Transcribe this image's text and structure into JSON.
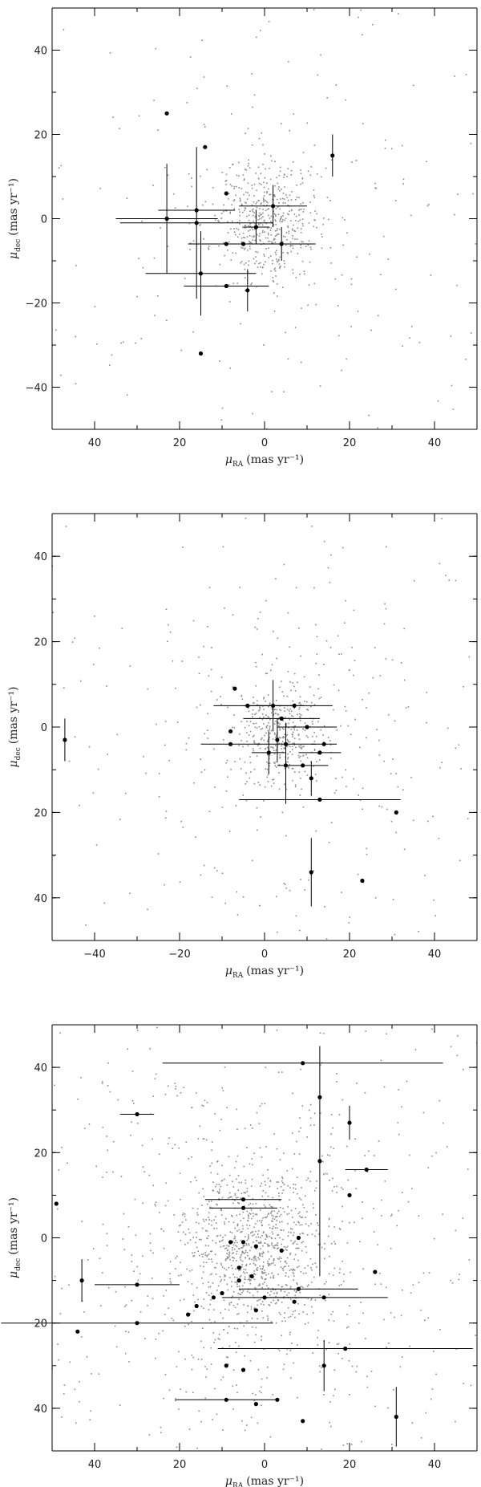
{
  "chart_data": [
    {
      "type": "scatter",
      "xlabel_main": "μ",
      "xlabel_sub": "RA",
      "xlabel_unit": "(mas yr⁻¹)",
      "ylabel_main": "μ",
      "ylabel_sub": "dec",
      "ylabel_unit": "(mas yr⁻¹)",
      "xlim": [
        50,
        -50
      ],
      "ylim": [
        -50,
        50
      ],
      "xticks": [
        40,
        20,
        0,
        -20,
        -40
      ],
      "xtick_labels": [
        "40",
        "20",
        "0",
        "20",
        "40"
      ],
      "yticks": [
        40,
        20,
        0,
        -20,
        -40
      ],
      "ytick_labels": [
        "40",
        "20",
        "0",
        "−20",
        "−40"
      ],
      "background": {
        "count": 700,
        "center": [
          0,
          0
        ],
        "core_sigma": [
          6,
          7
        ],
        "halo_sigma": [
          20,
          20
        ],
        "core_fraction": 0.62,
        "seed": 11
      },
      "members": [
        {
          "x": 23,
          "y": 25
        },
        {
          "x": 14,
          "y": 17
        },
        {
          "x": -16,
          "y": 15,
          "yerr": 5
        },
        {
          "x": 9,
          "y": 6
        },
        {
          "x": -2,
          "y": 3,
          "xerr": 8,
          "yerr": 5
        },
        {
          "x": 16,
          "y": 2,
          "xerr": 9
        },
        {
          "x": 23,
          "y": 0,
          "xerr": 12,
          "yerr": 13
        },
        {
          "x": 16,
          "y": -1,
          "xerr": 18,
          "yerr": 18
        },
        {
          "x": 2,
          "y": -2,
          "xerr": 3,
          "yerr": 4
        },
        {
          "x": 9,
          "y": -6,
          "xerr": 9
        },
        {
          "x": 5,
          "y": -6,
          "xerr": 7
        },
        {
          "x": -4,
          "y": -6,
          "xerr": 8,
          "yerr": 4
        },
        {
          "x": 15,
          "y": -13,
          "xerr": 13,
          "yerr": 10
        },
        {
          "x": 9,
          "y": -16,
          "xerr": 10
        },
        {
          "x": 4,
          "y": -17,
          "yerr": 5
        },
        {
          "x": 15,
          "y": -32
        }
      ]
    },
    {
      "type": "scatter",
      "xlabel_main": "μ",
      "xlabel_sub": "RA",
      "xlabel_unit": "(mas yr⁻¹)",
      "ylabel_main": "μ",
      "ylabel_sub": "dec",
      "ylabel_unit": "(mas yr⁻¹)",
      "xlim": [
        -50,
        50
      ],
      "ylim": [
        -50,
        50
      ],
      "xticks": [
        -40,
        -20,
        0,
        20,
        40
      ],
      "xtick_labels": [
        "−40",
        "−20",
        "0",
        "20",
        "40"
      ],
      "yticks": [
        40,
        20,
        0,
        -20,
        -40
      ],
      "ytick_labels": [
        "40",
        "20",
        "0",
        "20",
        "40"
      ],
      "background": {
        "count": 680,
        "center": [
          4,
          -2
        ],
        "core_sigma": [
          5,
          6
        ],
        "halo_sigma": [
          18,
          19
        ],
        "core_fraction": 0.5,
        "seed": 23
      },
      "members": [
        {
          "x": -47,
          "y": -3,
          "yerr": 5
        },
        {
          "x": -7,
          "y": 9
        },
        {
          "x": -8,
          "y": -1
        },
        {
          "x": -8,
          "y": -4,
          "xerr": 7
        },
        {
          "x": -4,
          "y": 5,
          "xerr": 8
        },
        {
          "x": 2,
          "y": 5,
          "xerr": 7,
          "yerr": 6
        },
        {
          "x": 4,
          "y": 2,
          "xerr": 9
        },
        {
          "x": 7,
          "y": 5,
          "xerr": 9
        },
        {
          "x": 10,
          "y": 0,
          "xerr": 7
        },
        {
          "x": 3,
          "y": -3,
          "yerr": 5
        },
        {
          "x": 5,
          "y": -4,
          "xerr": 7,
          "yerr": 5
        },
        {
          "x": 1,
          "y": -6,
          "xerr": 4,
          "yerr": 5
        },
        {
          "x": 13,
          "y": -6,
          "xerr": 5
        },
        {
          "x": 5,
          "y": -9,
          "yerr": 9
        },
        {
          "x": 9,
          "y": -9,
          "xerr": 6
        },
        {
          "x": 14,
          "y": -4,
          "xerr": 3
        },
        {
          "x": 11,
          "y": -12,
          "yerr": 4
        },
        {
          "x": 13,
          "y": -17,
          "xerr": 19
        },
        {
          "x": 31,
          "y": -20
        },
        {
          "x": 11,
          "y": -34,
          "yerr": 8
        },
        {
          "x": 23,
          "y": -36
        }
      ]
    },
    {
      "type": "scatter",
      "xlabel_main": "μ",
      "xlabel_sub": "RA",
      "xlabel_unit": "(mas yr⁻¹)",
      "ylabel_main": "μ",
      "ylabel_sub": "dec",
      "ylabel_unit": "(mas yr⁻¹)",
      "xlim": [
        50,
        -50
      ],
      "ylim": [
        -50,
        50
      ],
      "xticks": [
        40,
        20,
        0,
        -20,
        -40
      ],
      "xtick_labels": [
        "40",
        "20",
        "0",
        "20",
        "40"
      ],
      "yticks": [
        40,
        20,
        0,
        -20,
        -40
      ],
      "ytick_labels": [
        "40",
        "20",
        "0",
        "20",
        "40"
      ],
      "background": {
        "count": 1500,
        "center": [
          2,
          -3
        ],
        "core_sigma": [
          8,
          9
        ],
        "halo_sigma": [
          20,
          20
        ],
        "core_fraction": 0.55,
        "seed": 37
      },
      "members": [
        {
          "x": 49,
          "y": 8
        },
        {
          "x": 30,
          "y": 29,
          "xerr": 4
        },
        {
          "x": -9,
          "y": 41,
          "xerr": 33
        },
        {
          "x": -13,
          "y": 33
        },
        {
          "x": -20,
          "y": 27,
          "yerr": 4
        },
        {
          "x": -24,
          "y": 16,
          "xerr": 5
        },
        {
          "x": -20,
          "y": 10
        },
        {
          "x": -13,
          "y": 18,
          "yerr": 27
        },
        {
          "x": 43,
          "y": -10,
          "yerr": 5
        },
        {
          "x": 30,
          "y": -11,
          "xerr": 10
        },
        {
          "x": 5,
          "y": 9,
          "xerr": 9
        },
        {
          "x": 5,
          "y": 7,
          "xerr": 8
        },
        {
          "x": 8,
          "y": -1
        },
        {
          "x": 5,
          "y": -1
        },
        {
          "x": 2,
          "y": -2
        },
        {
          "x": -4,
          "y": -3
        },
        {
          "x": -8,
          "y": 0
        },
        {
          "x": 6,
          "y": -7
        },
        {
          "x": 3,
          "y": -9
        },
        {
          "x": 6,
          "y": -10
        },
        {
          "x": 10,
          "y": -13
        },
        {
          "x": 12,
          "y": -14
        },
        {
          "x": 16,
          "y": -16
        },
        {
          "x": 0,
          "y": -14,
          "xerr": 10
        },
        {
          "x": -7,
          "y": -15
        },
        {
          "x": -14,
          "y": -14,
          "xerr": 15
        },
        {
          "x": -8,
          "y": -12,
          "xerr": 14
        },
        {
          "x": -26,
          "y": -8
        },
        {
          "x": 18,
          "y": -18
        },
        {
          "x": 30,
          "y": -20,
          "xerr": 32
        },
        {
          "x": 44,
          "y": -22
        },
        {
          "x": 2,
          "y": -17
        },
        {
          "x": -19,
          "y": -26,
          "xerr": 30
        },
        {
          "x": -14,
          "y": -30,
          "yerr": 6
        },
        {
          "x": 9,
          "y": -30
        },
        {
          "x": 5,
          "y": -31
        },
        {
          "x": 9,
          "y": -38,
          "xerr": 12
        },
        {
          "x": 2,
          "y": -39
        },
        {
          "x": -3,
          "y": -38
        },
        {
          "x": -9,
          "y": -43
        },
        {
          "x": -31,
          "y": -42,
          "yerr": 7
        }
      ]
    }
  ]
}
